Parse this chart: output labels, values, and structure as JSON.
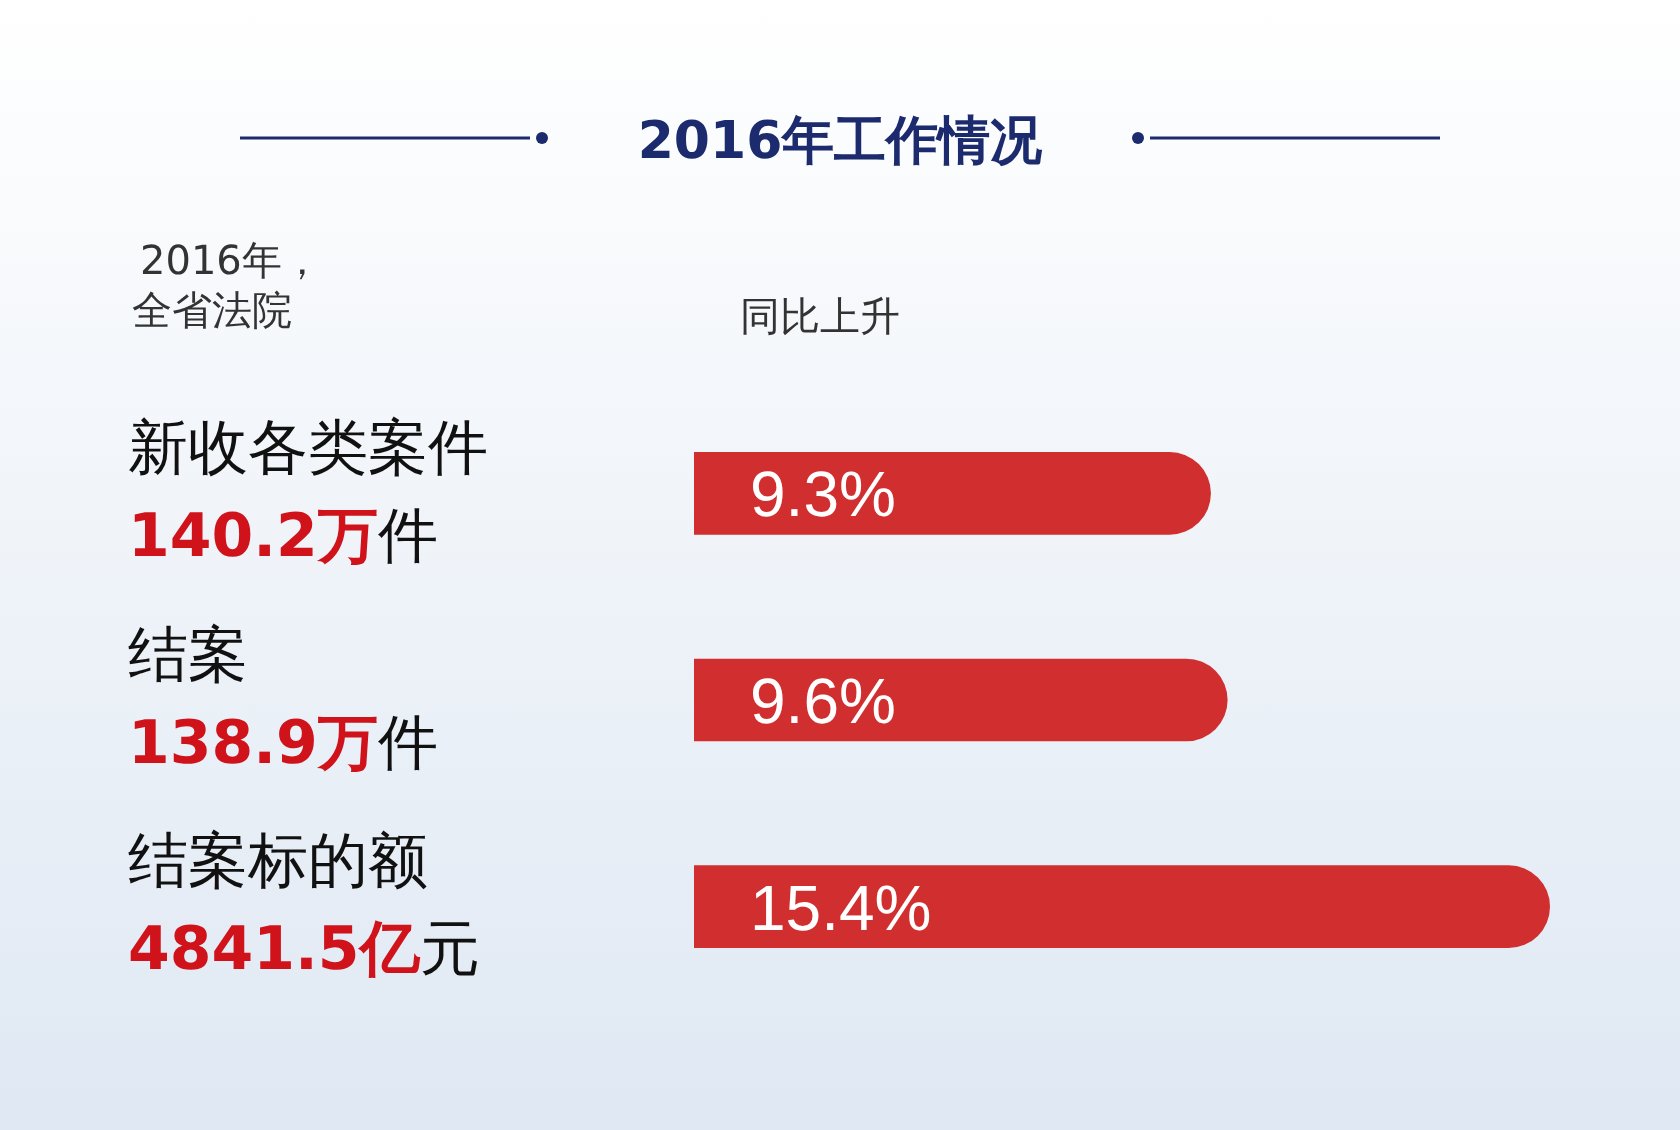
{
  "chart_data": {
    "type": "bar",
    "orientation": "horizontal",
    "title": "2016年工作情况",
    "categories": [
      "新收各类案件",
      "结案",
      "结案标的额"
    ],
    "values": [
      9.3,
      9.6,
      15.4
    ],
    "color": "#d12f2f",
    "data_labels": true,
    "value_labels": [
      "9.3%",
      "9.6%",
      "15.4%"
    ],
    "annotations": [
      "140.2万件",
      "138.9万件",
      "4841.5亿元",
      "2016年，",
      "全省法院",
      "同比上升"
    ]
  }
}
